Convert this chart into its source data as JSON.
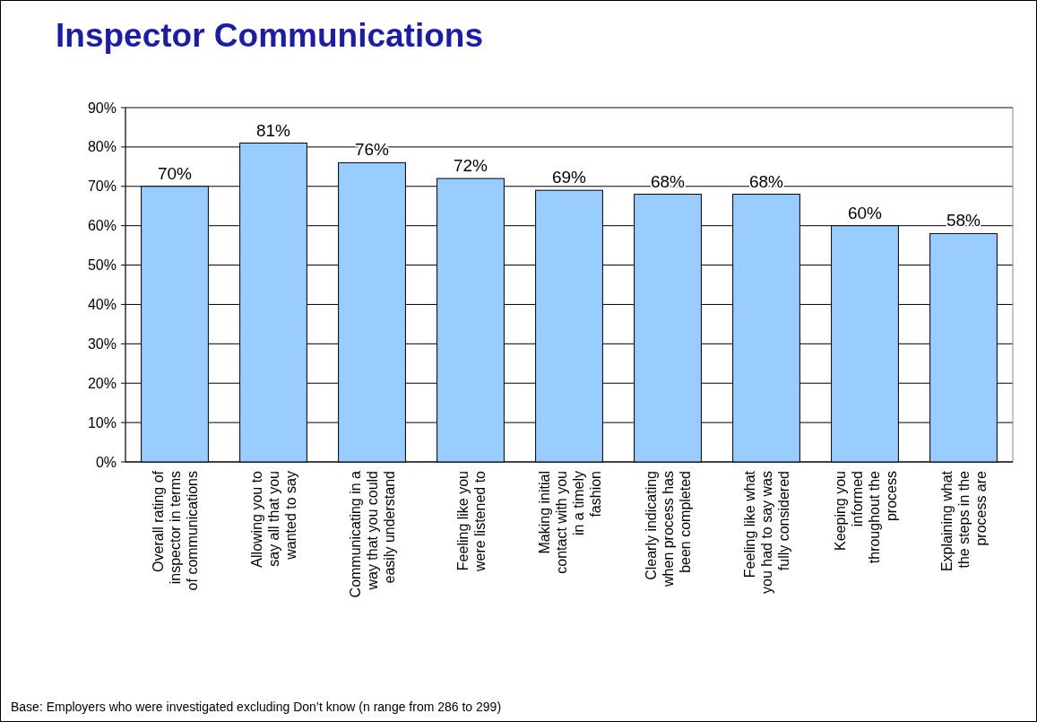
{
  "chart_data": {
    "type": "bar",
    "title": "Inspector Communications",
    "categories": [
      "Overall rating of inspector in terms of communications",
      "Allowing you to say all that you wanted to say",
      "Communicating in a way that you could easily understand",
      "Feeling like you were listened to",
      "Making initial contact with you in a timely fashion",
      "Clearly indicating when process has been completed",
      "Feeling like what you had to say was fully considered",
      "Keeping you informed throughout the process",
      "Explaining what the steps in the process are"
    ],
    "values": [
      70,
      81,
      76,
      72,
      69,
      68,
      68,
      60,
      58
    ],
    "value_labels": [
      "70%",
      "81%",
      "76%",
      "72%",
      "69%",
      "68%",
      "68%",
      "60%",
      "58%"
    ],
    "color": "#99ccff",
    "ylim": [
      0,
      90
    ],
    "yticks": [
      {
        "value": 0,
        "label": "0%"
      },
      {
        "value": 10,
        "label": "10%"
      },
      {
        "value": 20,
        "label": "20%"
      },
      {
        "value": 30,
        "label": "30%"
      },
      {
        "value": 40,
        "label": "40%"
      },
      {
        "value": 50,
        "label": "50%"
      },
      {
        "value": 60,
        "label": "60%"
      },
      {
        "value": 70,
        "label": "70%"
      },
      {
        "value": 80,
        "label": "80%"
      },
      {
        "value": 90,
        "label": "90%"
      }
    ],
    "grid": "y",
    "annotations": [
      "Base:  Employers who were investigated excluding Don’t know (n range from 286 to 299)"
    ]
  }
}
